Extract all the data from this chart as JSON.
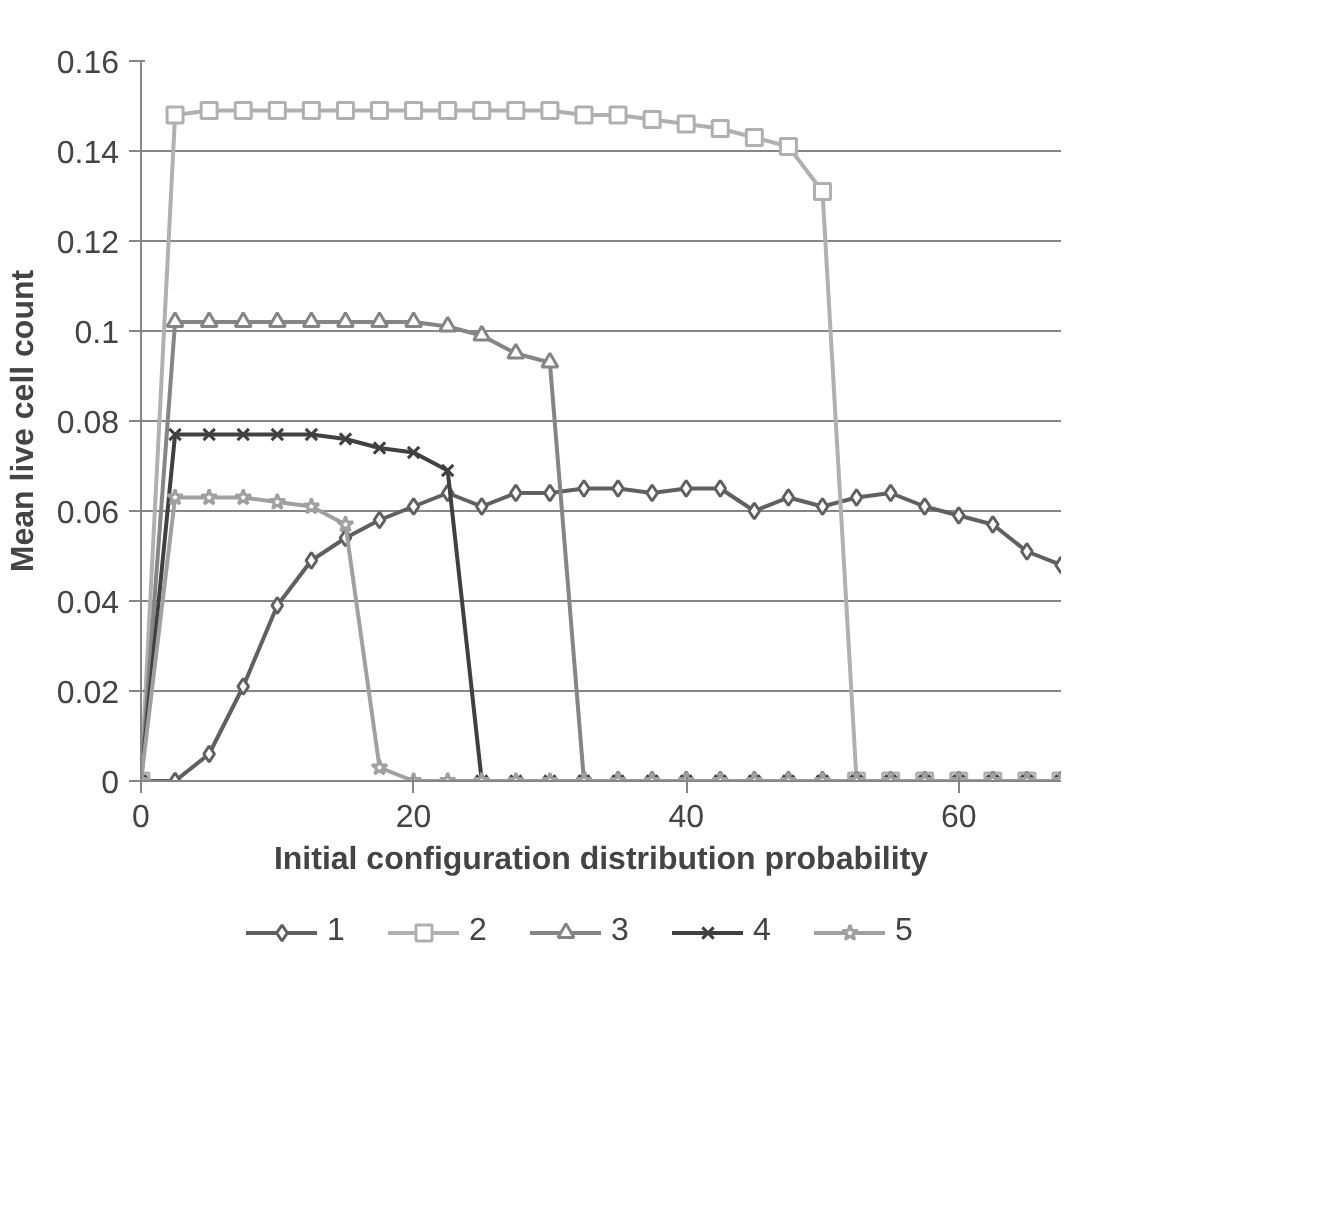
{
  "chart_data": {
    "type": "line",
    "xlabel": "Initial configuration distribution probability",
    "ylabel": "Mean live cell count",
    "x": [
      0,
      2.5,
      5,
      7.5,
      10,
      12.5,
      15,
      17.5,
      20,
      22.5,
      25,
      27.5,
      30,
      32.5,
      35,
      37.5,
      40,
      42.5,
      45,
      47.5,
      50,
      52.5,
      55,
      57.5,
      60,
      62.5,
      65,
      67.5
    ],
    "series": [
      {
        "name": "1",
        "color": "#606060",
        "marker": "diamond",
        "values": [
          0,
          0,
          0.006,
          0.021,
          0.039,
          0.049,
          0.054,
          0.058,
          0.061,
          0.064,
          0.061,
          0.064,
          0.064,
          0.065,
          0.065,
          0.064,
          0.065,
          0.065,
          0.06,
          0.063,
          0.061,
          0.063,
          0.064,
          0.061,
          0.059,
          0.057,
          0.051,
          0.048
        ]
      },
      {
        "name": "2",
        "color": "#b0b0b0",
        "marker": "square",
        "values": [
          0,
          0.148,
          0.149,
          0.149,
          0.149,
          0.149,
          0.149,
          0.149,
          0.149,
          0.149,
          0.149,
          0.149,
          0.149,
          0.148,
          0.148,
          0.147,
          0.146,
          0.145,
          0.143,
          0.141,
          0.131,
          0,
          0,
          0,
          0,
          0,
          0,
          0
        ]
      },
      {
        "name": "3",
        "color": "#858585",
        "marker": "triangle",
        "values": [
          0,
          0.102,
          0.102,
          0.102,
          0.102,
          0.102,
          0.102,
          0.102,
          0.102,
          0.101,
          0.099,
          0.095,
          0.093,
          0,
          0,
          0,
          0,
          0,
          0,
          0,
          0,
          0,
          0,
          0,
          0,
          0,
          0,
          0
        ]
      },
      {
        "name": "4",
        "color": "#404040",
        "marker": "cross",
        "values": [
          0,
          0.077,
          0.077,
          0.077,
          0.077,
          0.077,
          0.076,
          0.074,
          0.073,
          0.069,
          0,
          0,
          0,
          0,
          0,
          0,
          0,
          0,
          0,
          0,
          0,
          0,
          0,
          0,
          0,
          0,
          0,
          0
        ]
      },
      {
        "name": "5",
        "color": "#a0a0a0",
        "marker": "star",
        "values": [
          0,
          0.063,
          0.063,
          0.063,
          0.062,
          0.061,
          0.057,
          0.003,
          0,
          0,
          0,
          0,
          0,
          0,
          0,
          0,
          0,
          0,
          0,
          0,
          0,
          0,
          0,
          0,
          0,
          0,
          0,
          0
        ]
      }
    ],
    "xlim": [
      0,
      67.5
    ],
    "xticks": [
      0,
      20,
      40,
      60
    ],
    "ylim": [
      0,
      0.16
    ],
    "yticks": [
      0,
      0.02,
      0.04,
      0.06,
      0.08,
      0.1,
      0.12,
      0.14,
      0.16
    ],
    "grid": "y",
    "legend": "bottom",
    "line_style": "solid"
  }
}
